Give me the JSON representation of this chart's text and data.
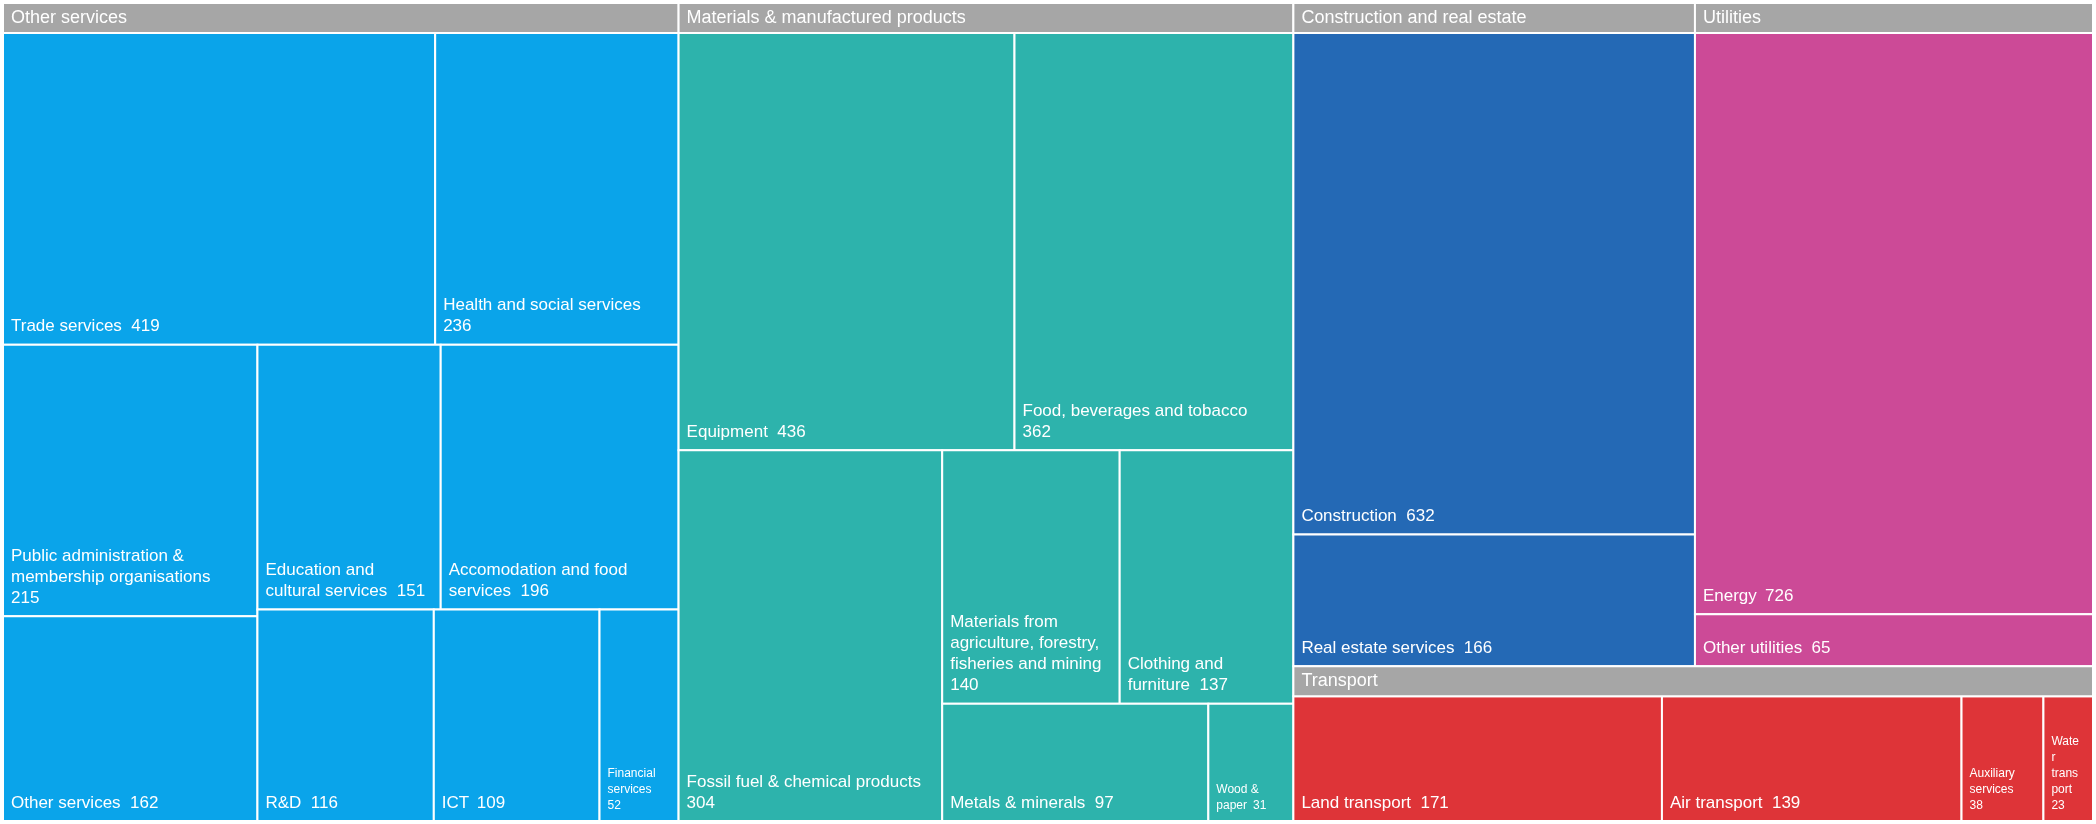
{
  "chart_data": {
    "type": "other",
    "data_labels": true,
    "categories": [
      "Trade services",
      "Health and social services",
      "Public administration & membership organisations",
      "Other services",
      "Education and cultural services",
      "Accomodation and food services",
      "R&D",
      "ICT",
      "Financial services",
      "Equipment",
      "Food, beverages and tobacco",
      "Fossil fuel & chemical products",
      "Materials from agriculture, forestry, fisheries and mining",
      "Clothing and furniture",
      "Metals & minerals",
      "Wood & paper",
      "Construction",
      "Real estate services",
      "Energy",
      "Other utilities",
      "Land transport",
      "Air transport",
      "Auxiliary services",
      "Water transport"
    ],
    "series": [
      {
        "name": "Other services",
        "color": "#0aa4ea",
        "values": [
          419,
          236,
          215,
          162,
          151,
          196,
          116,
          109,
          52,
          null,
          null,
          null,
          null,
          null,
          null,
          null,
          null,
          null,
          null,
          null,
          null,
          null,
          null,
          null
        ]
      },
      {
        "name": "Materials & manufactured products",
        "color": "#2db3ac",
        "values": [
          null,
          null,
          null,
          null,
          null,
          null,
          null,
          null,
          null,
          436,
          362,
          304,
          140,
          137,
          97,
          31,
          null,
          null,
          null,
          null,
          null,
          null,
          null,
          null
        ]
      },
      {
        "name": "Construction and real estate",
        "color": "#2469b5",
        "values": [
          null,
          null,
          null,
          null,
          null,
          null,
          null,
          null,
          null,
          null,
          null,
          null,
          null,
          null,
          null,
          null,
          632,
          166,
          null,
          null,
          null,
          null,
          null,
          null
        ]
      },
      {
        "name": "Utilities",
        "color": "#cc4a97",
        "values": [
          null,
          null,
          null,
          null,
          null,
          null,
          null,
          null,
          null,
          null,
          null,
          null,
          null,
          null,
          null,
          null,
          null,
          null,
          726,
          65,
          null,
          null,
          null,
          null
        ]
      },
      {
        "name": "Transport",
        "color": "#de3438",
        "values": [
          null,
          null,
          null,
          null,
          null,
          null,
          null,
          null,
          null,
          null,
          null,
          null,
          null,
          null,
          null,
          null,
          null,
          null,
          null,
          null,
          171,
          139,
          38,
          23
        ]
      }
    ]
  }
}
